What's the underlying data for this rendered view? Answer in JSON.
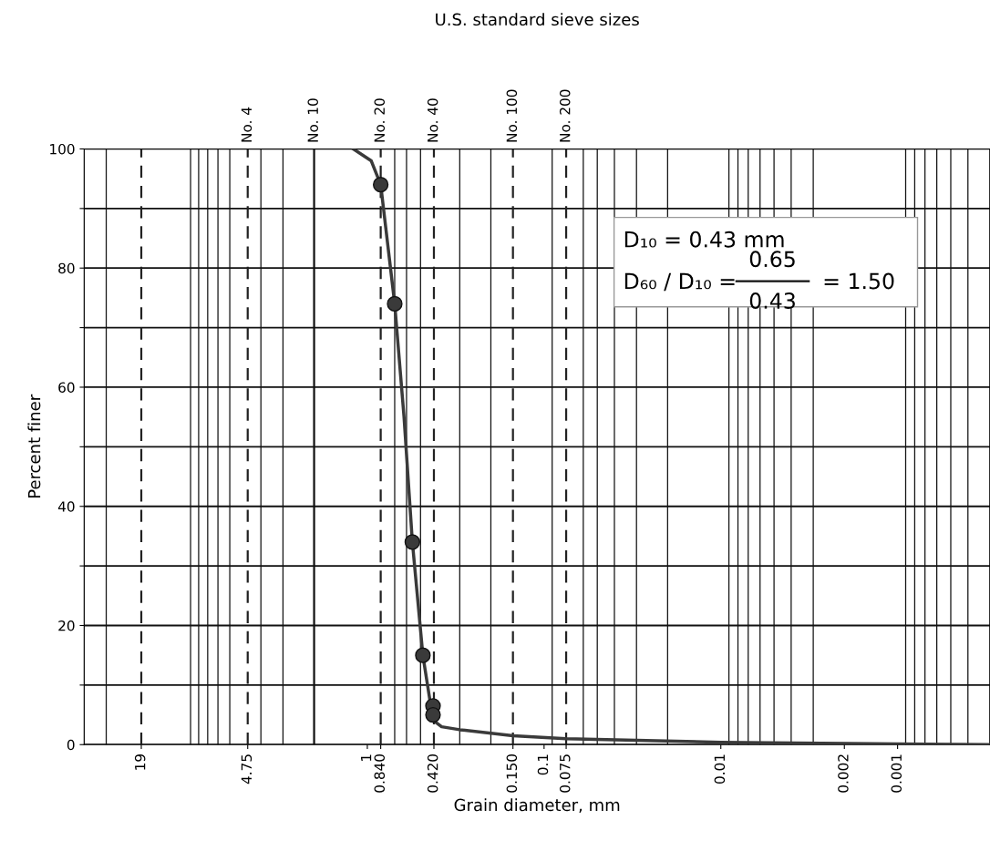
{
  "chart_data": {
    "type": "line",
    "xlabel": "Grain diameter, mm",
    "ylabel": "Percent finer",
    "log": "x",
    "xlim": [
      40,
      0.0003
    ],
    "ylim": [
      0,
      100
    ],
    "xticks": [
      19,
      4.75,
      1,
      {
        "value": 0.84,
        "label": "0.840"
      },
      {
        "value": 0.42,
        "label": "0.420"
      },
      {
        "value": 0.15,
        "label": "0.150"
      },
      0.1,
      0.075,
      0.01,
      0.002,
      0.001
    ],
    "yticks": [
      0,
      {
        "value": 10,
        "label": null
      },
      20,
      {
        "value": 30,
        "label": null
      },
      40,
      {
        "value": 50,
        "label": null
      },
      60,
      {
        "value": 70,
        "label": null
      },
      80,
      {
        "value": 90,
        "label": null
      },
      100
    ],
    "grid": true,
    "series": [
      {
        "color": "#3a3a3a",
        "marker": "none",
        "x": [
          1.2,
          0.95,
          0.84,
          0.7,
          0.62,
          0.556,
          0.485,
          0.44,
          0.42,
          0.38,
          0.3,
          0.15,
          0.075,
          0.01,
          0.001,
          0.0003
        ],
        "values": [
          100,
          98,
          94,
          74,
          55,
          34,
          15,
          7,
          4,
          3,
          2.5,
          1.5,
          1,
          0.4,
          0.1,
          0
        ]
      },
      {
        "type": "scatter",
        "color": "#3a3a3a",
        "marker": "circle",
        "x": [
          0.84,
          0.7,
          0.556,
          0.485,
          0.425,
          0.425
        ],
        "values": [
          94,
          74,
          34,
          15,
          6.5,
          5
        ]
      }
    ],
    "ref_lines": [
      {
        "axis": "x",
        "value": 19,
        "line_style": "dashed",
        "color": "#222222"
      },
      {
        "axis": "x",
        "value": 4.75,
        "line_style": "dashed",
        "color": "#222222",
        "label": "No. 4"
      },
      {
        "axis": "x",
        "value": 2.0,
        "line_style": "solid",
        "color": "#111111",
        "label": "No. 10"
      },
      {
        "axis": "x",
        "value": 0.84,
        "line_style": "dashed",
        "color": "#222222",
        "label": "No. 20"
      },
      {
        "axis": "x",
        "value": 0.42,
        "line_style": "dashed",
        "color": "#222222",
        "label": "No. 40"
      },
      {
        "axis": "x",
        "value": 0.15,
        "line_style": "dashed",
        "color": "#222222",
        "label": "No. 100"
      },
      {
        "axis": "x",
        "value": 0.075,
        "line_style": "dashed",
        "color": "#222222",
        "label": "No. 200"
      }
    ],
    "annotations": [
      "D₁₀ = 0.43 mm",
      "D₆₀ / D₁₀ =",
      "0.65",
      "0.43",
      "= 1.50",
      "U.S. standard sieve sizes"
    ]
  }
}
